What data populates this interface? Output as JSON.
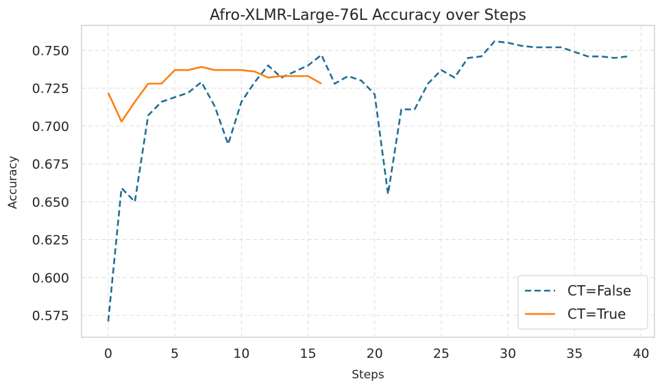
{
  "chart_data": {
    "type": "line",
    "title": "Afro-XLMR-Large-76L Accuracy over Steps",
    "xlabel": "Steps",
    "ylabel": "Accuracy",
    "xlim": [
      -2,
      41
    ],
    "ylim": [
      0.5605,
      0.7665
    ],
    "xticks": [
      0,
      5,
      10,
      15,
      20,
      25,
      30,
      35,
      40
    ],
    "xtick_labels": [
      "0",
      "5",
      "10",
      "15",
      "20",
      "25",
      "30",
      "35",
      "40"
    ],
    "yticks": [
      0.575,
      0.6,
      0.625,
      0.65,
      0.675,
      0.7,
      0.725,
      0.75
    ],
    "ytick_labels": [
      "0.575",
      "0.600",
      "0.625",
      "0.650",
      "0.675",
      "0.700",
      "0.725",
      "0.750"
    ],
    "grid": true,
    "legend_position": "bottom-right",
    "series": [
      {
        "name": "CT=False",
        "color": "#1f6f94",
        "style": "dashed",
        "x": [
          0,
          1,
          2,
          3,
          4,
          5,
          6,
          7,
          8,
          9,
          10,
          11,
          12,
          13,
          14,
          15,
          16,
          17,
          18,
          19,
          20,
          21,
          22,
          23,
          24,
          25,
          26,
          27,
          28,
          29,
          30,
          31,
          32,
          33,
          34,
          35,
          36,
          37,
          38,
          39
        ],
        "values": [
          0.571,
          0.659,
          0.65,
          0.707,
          0.716,
          0.719,
          0.722,
          0.729,
          0.713,
          0.688,
          0.716,
          0.729,
          0.74,
          0.732,
          0.736,
          0.74,
          0.747,
          0.728,
          0.733,
          0.73,
          0.721,
          0.655,
          0.711,
          0.711,
          0.728,
          0.737,
          0.732,
          0.745,
          0.746,
          0.756,
          0.755,
          0.753,
          0.752,
          0.752,
          0.752,
          0.749,
          0.746,
          0.746,
          0.745,
          0.746
        ]
      },
      {
        "name": "CT=True",
        "color": "#ff7f0e",
        "style": "solid",
        "x": [
          0,
          1,
          2,
          3,
          4,
          5,
          6,
          7,
          8,
          9,
          10,
          11,
          12,
          13,
          14,
          15,
          16
        ],
        "values": [
          0.722,
          0.703,
          0.716,
          0.728,
          0.728,
          0.737,
          0.737,
          0.739,
          0.737,
          0.737,
          0.737,
          0.736,
          0.732,
          0.733,
          0.733,
          0.733,
          0.728
        ]
      }
    ]
  }
}
